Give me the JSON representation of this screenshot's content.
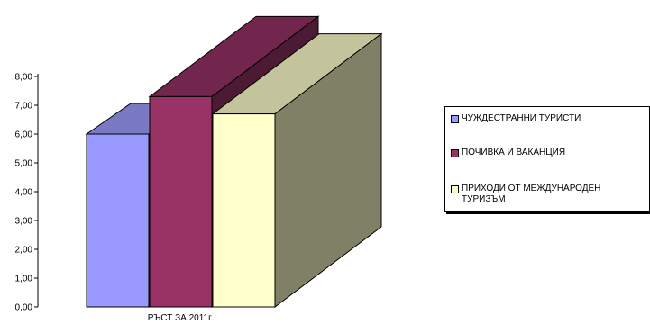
{
  "chart_data": {
    "type": "bar",
    "categories": [
      "РЪСТ ЗА 2011г."
    ],
    "series": [
      {
        "name": "ЧУЖДЕСТРАННИ ТУРИСТИ",
        "values": [
          6.0
        ]
      },
      {
        "name": "ПОЧИВКА И ВАКАНЦИЯ",
        "values": [
          7.3
        ]
      },
      {
        "name": "ПРИХОДИ ОТ МЕЖДУНАРОДЕН ТУРИЗЪМ",
        "values": [
          6.7
        ]
      }
    ],
    "ylim": [
      0,
      8
    ],
    "yticks": [
      "0,00",
      "1,00",
      "2,00",
      "3,00",
      "4,00",
      "5,00",
      "6,00",
      "7,00",
      "8,00"
    ],
    "title": "",
    "xlabel": "",
    "ylabel": "",
    "legend_position": "right",
    "grid": false,
    "three_d": true
  },
  "colors": {
    "series": [
      {
        "front": "#9999ff",
        "side": "#4d4d99",
        "top": "#7a7ac4"
      },
      {
        "front": "#993366",
        "side": "#4d1a33",
        "top": "#73264d"
      },
      {
        "front": "#ffffcc",
        "side": "#808066",
        "top": "#c4c49c"
      }
    ]
  }
}
